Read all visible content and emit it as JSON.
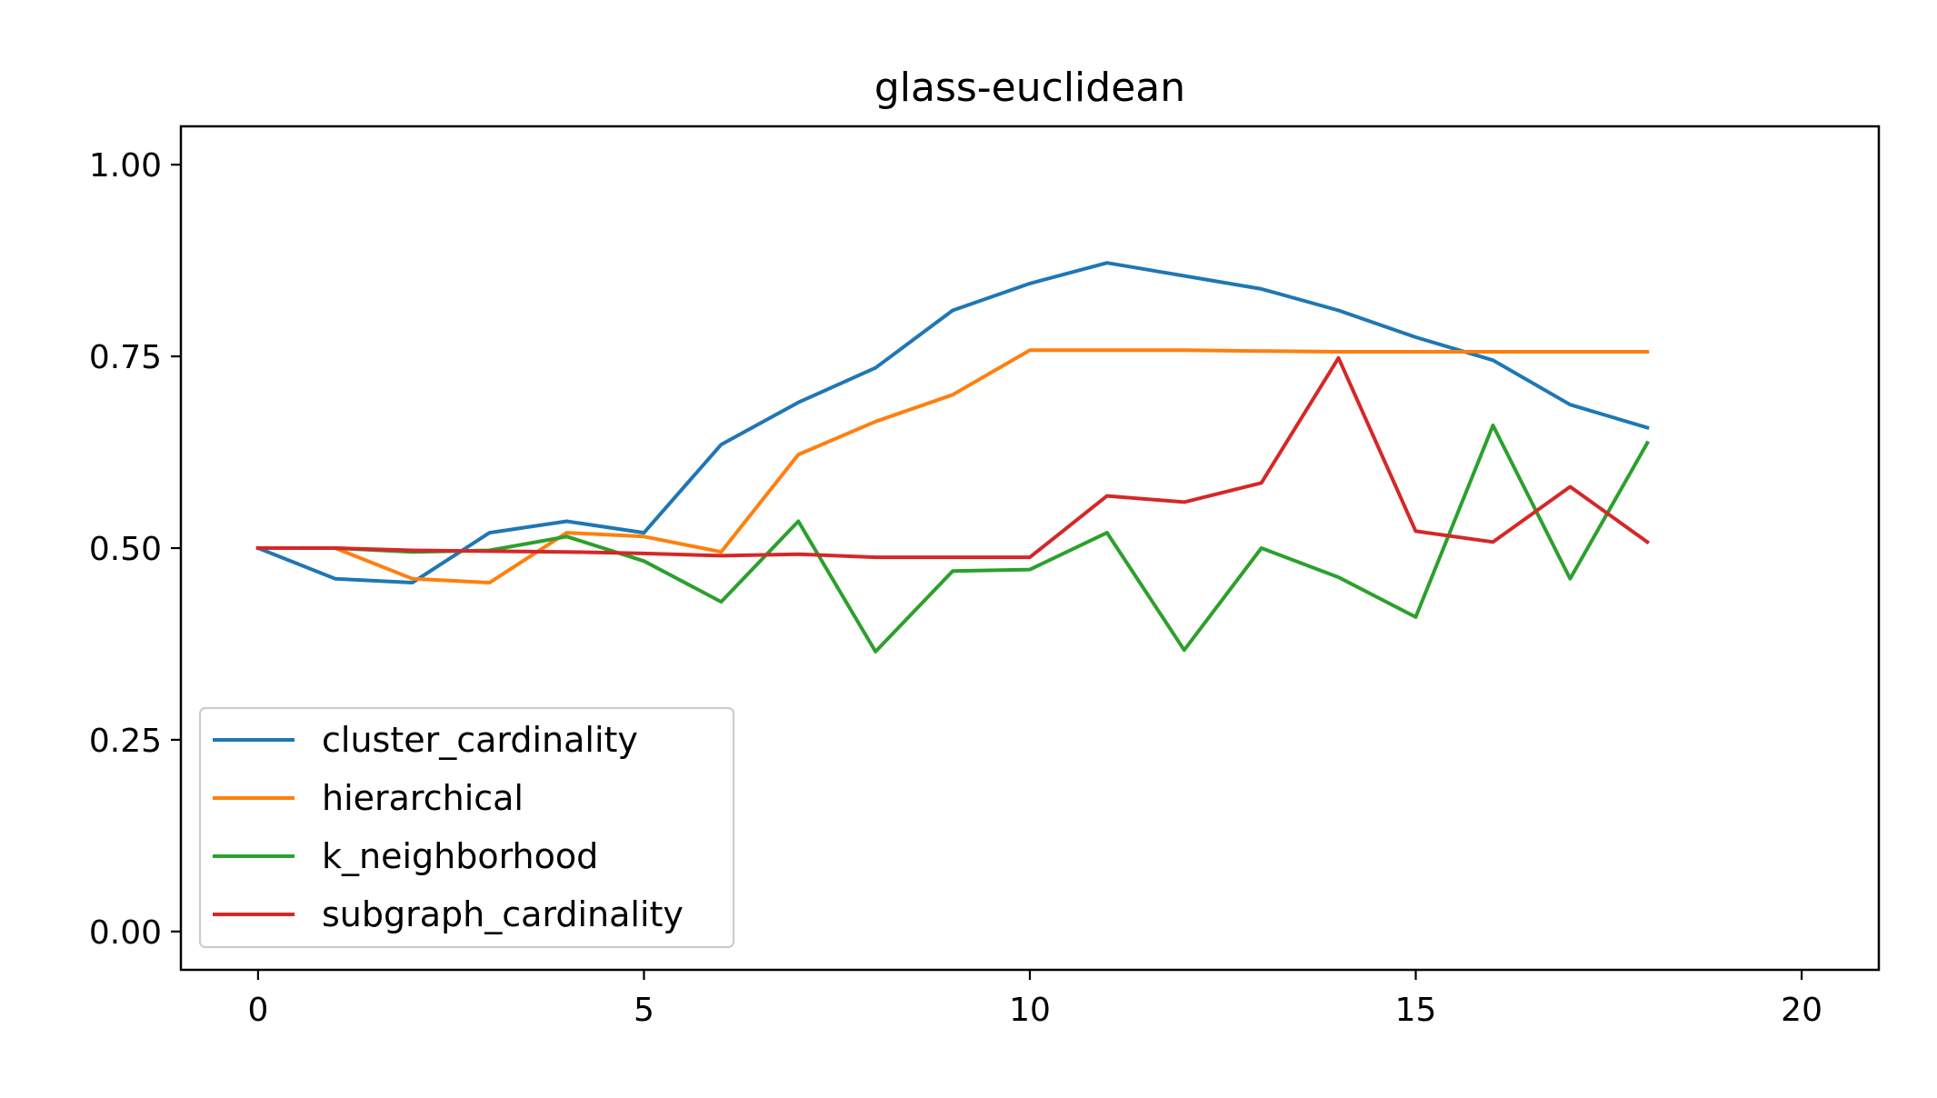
{
  "chart_data": {
    "type": "line",
    "title": "glass-euclidean",
    "xlabel": "",
    "ylabel": "",
    "xlim": [
      -1,
      21
    ],
    "ylim": [
      -0.05,
      1.05
    ],
    "xticks": [
      0,
      5,
      10,
      15,
      20
    ],
    "yticks": [
      0.0,
      0.25,
      0.5,
      0.75,
      1.0
    ],
    "xtick_labels": [
      "0",
      "5",
      "10",
      "15",
      "20"
    ],
    "ytick_labels": [
      "0.00",
      "0.25",
      "0.50",
      "0.75",
      "1.00"
    ],
    "grid": false,
    "legend_position": "lower-left",
    "x": [
      0,
      1,
      2,
      3,
      4,
      5,
      6,
      7,
      8,
      9,
      10,
      11,
      12,
      13,
      14,
      15,
      16,
      17,
      18
    ],
    "series": [
      {
        "name": "cluster_cardinality",
        "color": "#1f77b4",
        "values": [
          0.5,
          0.46,
          0.455,
          0.52,
          0.535,
          0.52,
          0.635,
          0.69,
          0.735,
          0.81,
          0.845,
          0.872,
          0.855,
          0.838,
          0.81,
          0.775,
          0.745,
          0.687,
          0.657
        ]
      },
      {
        "name": "hierarchical",
        "color": "#ff7f0e",
        "values": [
          0.5,
          0.5,
          0.46,
          0.455,
          0.52,
          0.515,
          0.495,
          0.622,
          0.665,
          0.7,
          0.758,
          0.758,
          0.758,
          0.757,
          0.756,
          0.756,
          0.756,
          0.756,
          0.756
        ]
      },
      {
        "name": "k_neighborhood",
        "color": "#2ca02c",
        "values": [
          0.5,
          0.5,
          0.495,
          0.497,
          0.515,
          0.483,
          0.43,
          0.535,
          0.365,
          0.47,
          0.472,
          0.52,
          0.367,
          0.5,
          0.462,
          0.41,
          0.66,
          0.46,
          0.637
        ]
      },
      {
        "name": "subgraph_cardinality",
        "color": "#d62728",
        "values": [
          0.5,
          0.5,
          0.497,
          0.496,
          0.495,
          0.493,
          0.49,
          0.492,
          0.488,
          0.488,
          0.488,
          0.568,
          0.56,
          0.585,
          0.748,
          0.522,
          0.508,
          0.58,
          0.508
        ]
      }
    ]
  }
}
